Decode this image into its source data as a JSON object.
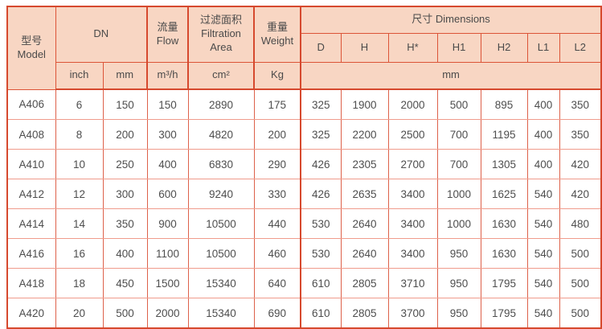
{
  "accent": {
    "header_bg": "#f8d6c3",
    "border_strong": "#d6492e",
    "border_vertical": "#dd614a",
    "border_horizontal": "#f09b8c",
    "text": "#4e4e4e"
  },
  "table": {
    "header": {
      "model_zh": "型号",
      "model_en": "Model",
      "dn": "DN",
      "flow_zh": "流量",
      "flow_en": "Flow",
      "filtration_zh": "过滤面积",
      "filtration_en": "Filtration Area",
      "weight_zh": "重量",
      "weight_en": "Weight",
      "dimensions_zh": "尺寸",
      "dimensions_en": "Dimensions",
      "dim_cols": [
        "D",
        "H",
        "H*",
        "H1",
        "H2",
        "L1",
        "L2"
      ],
      "units": {
        "inch": "inch",
        "mm": "mm",
        "flow": "m³/h",
        "area": "cm²",
        "weight": "Kg",
        "dims": "mm"
      }
    },
    "rows": [
      [
        "A406",
        "6",
        "150",
        "150",
        "2890",
        "175",
        "325",
        "1900",
        "2000",
        "500",
        "895",
        "400",
        "350"
      ],
      [
        "A408",
        "8",
        "200",
        "300",
        "4820",
        "200",
        "325",
        "2200",
        "2500",
        "700",
        "1195",
        "400",
        "350"
      ],
      [
        "A410",
        "10",
        "250",
        "400",
        "6830",
        "290",
        "426",
        "2305",
        "2700",
        "700",
        "1305",
        "400",
        "420"
      ],
      [
        "A412",
        "12",
        "300",
        "600",
        "9240",
        "330",
        "426",
        "2635",
        "3400",
        "1000",
        "1625",
        "540",
        "420"
      ],
      [
        "A414",
        "14",
        "350",
        "900",
        "10500",
        "440",
        "530",
        "2640",
        "3400",
        "1000",
        "1630",
        "540",
        "480"
      ],
      [
        "A416",
        "16",
        "400",
        "1100",
        "10500",
        "460",
        "530",
        "2640",
        "3400",
        "950",
        "1630",
        "540",
        "500"
      ],
      [
        "A418",
        "18",
        "450",
        "1500",
        "15340",
        "640",
        "610",
        "2805",
        "3710",
        "950",
        "1795",
        "540",
        "500"
      ],
      [
        "A420",
        "20",
        "500",
        "2000",
        "15340",
        "690",
        "610",
        "2805",
        "3700",
        "950",
        "1795",
        "540",
        "500"
      ]
    ]
  }
}
